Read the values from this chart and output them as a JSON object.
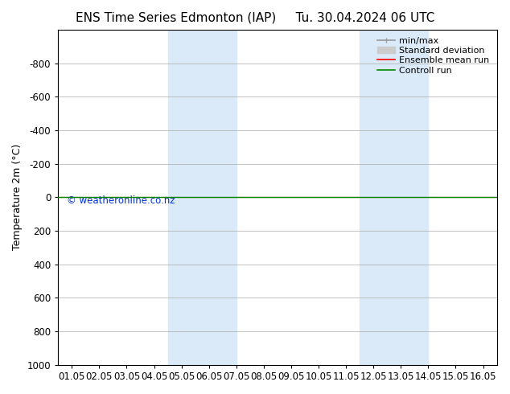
{
  "title_left": "ENS Time Series Edmonton (IAP)",
  "title_right": "Tu. 30.04.2024 06 UTC",
  "ylabel": "Temperature 2m (°C)",
  "ylim": [
    -1000,
    1000
  ],
  "yticks": [
    -800,
    -600,
    -400,
    -200,
    0,
    200,
    400,
    600,
    800,
    1000
  ],
  "xtick_labels": [
    "01.05",
    "02.05",
    "03.05",
    "04.05",
    "05.05",
    "06.05",
    "07.05",
    "08.05",
    "09.05",
    "10.05",
    "11.05",
    "12.05",
    "13.05",
    "14.05",
    "15.05",
    "16.05"
  ],
  "shaded_bands": [
    {
      "xstart": 3.5,
      "xend": 6.0
    },
    {
      "xstart": 10.5,
      "xend": 13.0
    }
  ],
  "green_line_y": 0,
  "red_line_y": 0,
  "copyright_text": "© weatheronline.co.nz",
  "copyright_color": "#0033cc",
  "bg_color": "#ffffff",
  "plot_bg_color": "#ffffff",
  "shaded_color": "#daeaf8",
  "legend_entries": [
    "min/max",
    "Standard deviation",
    "Ensemble mean run",
    "Controll run"
  ],
  "legend_line_color": "#999999",
  "legend_std_color": "#cccccc",
  "legend_red_color": "#ff0000",
  "legend_green_color": "#008800",
  "grid_color": "#aaaaaa",
  "spine_color": "#000000",
  "title_fontsize": 11,
  "axis_fontsize": 9,
  "tick_fontsize": 8.5,
  "legend_fontsize": 8,
  "ylabel_fontsize": 9
}
